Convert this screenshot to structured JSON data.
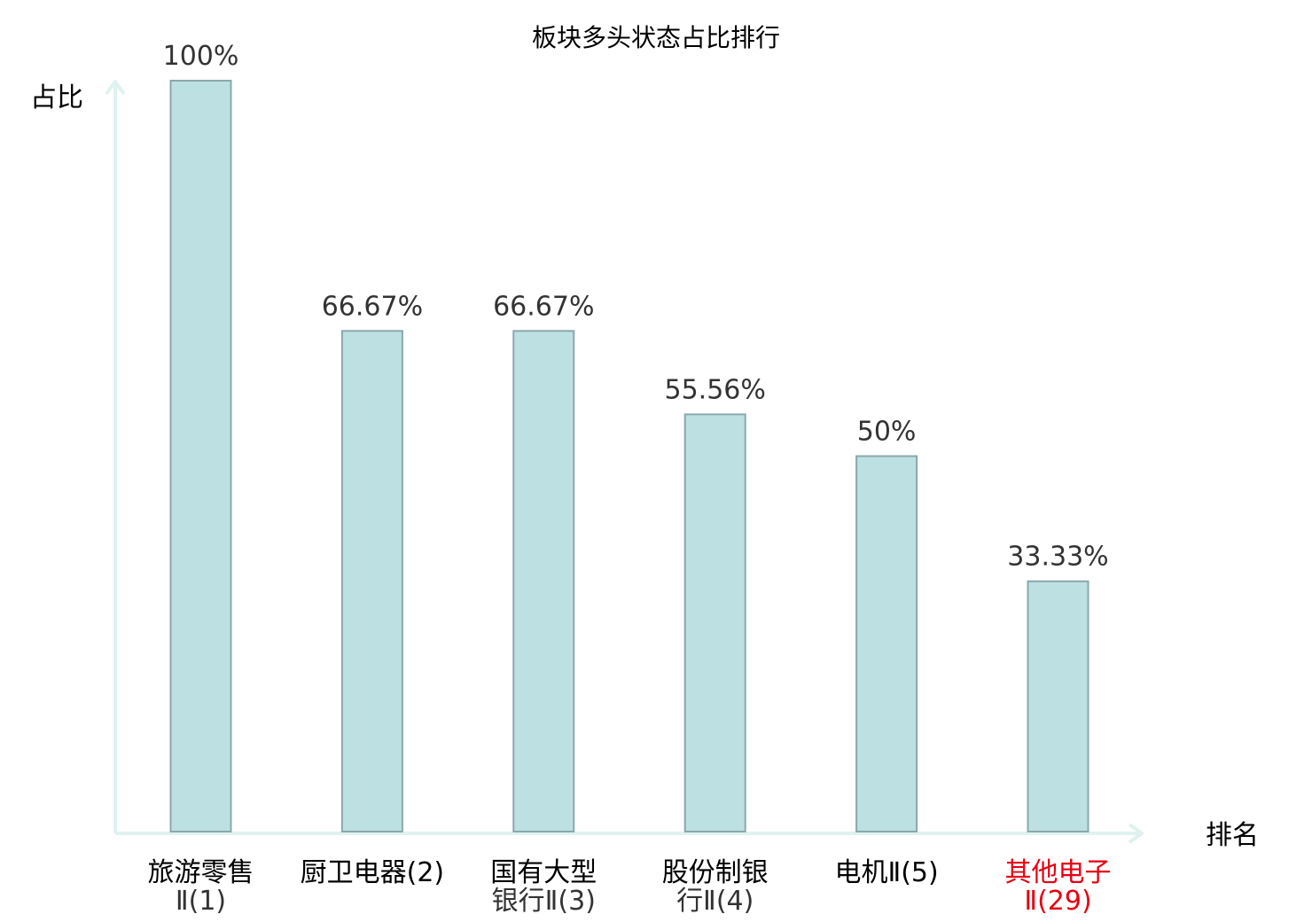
{
  "chart_data": {
    "type": "bar",
    "title": "板块多头状态占比排行",
    "ylabel": "占比",
    "xlabel": "排名",
    "ylim": [
      0,
      100
    ],
    "grid": false,
    "legend": "none",
    "categories": [
      {
        "label": [
          "旅游零售",
          "Ⅱ(1)"
        ],
        "highlight": false
      },
      {
        "label": [
          "厨卫电器(2)"
        ],
        "highlight": false
      },
      {
        "label": [
          "国有大型",
          "银行Ⅱ(3)"
        ],
        "highlight": false
      },
      {
        "label": [
          "股份制银",
          "行Ⅱ(4)"
        ],
        "highlight": false
      },
      {
        "label": [
          "电机Ⅱ(5)"
        ],
        "highlight": false
      },
      {
        "label": [
          "其他电子",
          "Ⅱ(29)"
        ],
        "highlight": true
      }
    ],
    "values": [
      100,
      66.67,
      66.67,
      55.56,
      50,
      33.33
    ],
    "value_labels": [
      "100%",
      "66.67%",
      "66.67%",
      "55.56%",
      "50%",
      "33.33%"
    ],
    "colors": {
      "bar_fill": "#bde0e3",
      "bar_stroke": "#8aa8ad",
      "axis": "#dff2ef",
      "highlight_text": "#e60012"
    }
  }
}
